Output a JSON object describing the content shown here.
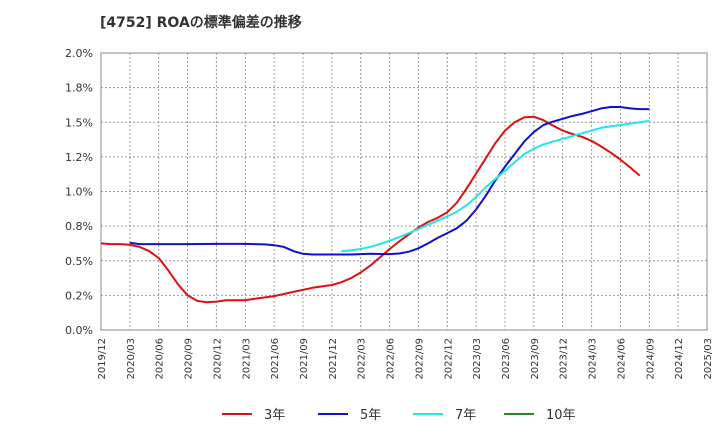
{
  "chart_data": {
    "type": "line",
    "title": "[4752]  ROAの標準偏差の推移",
    "xlabel": "",
    "ylabel": "",
    "ylim": [
      0,
      2.0
    ],
    "yticks": [
      "0.0%",
      "0.2%",
      "0.5%",
      "0.8%",
      "1.0%",
      "1.2%",
      "1.5%",
      "1.8%",
      "2.0%"
    ],
    "ytick_values": [
      0,
      0.25,
      0.5,
      0.75,
      1.0,
      1.25,
      1.5,
      1.75,
      2.0
    ],
    "xticks": [
      "2019/12",
      "2020/03",
      "2020/06",
      "2020/09",
      "2020/12",
      "2021/03",
      "2021/06",
      "2021/09",
      "2021/12",
      "2022/03",
      "2022/06",
      "2022/09",
      "2022/12",
      "2023/03",
      "2023/06",
      "2023/09",
      "2023/12",
      "2024/03",
      "2024/06",
      "2024/09",
      "2024/12",
      "2025/03"
    ],
    "grid": true,
    "legend_position": "bottom",
    "series": [
      {
        "name": "3年",
        "color": "#dd1111",
        "points": [
          [
            0,
            0.625
          ],
          [
            1,
            0.62
          ],
          [
            2,
            0.62
          ],
          [
            3,
            0.615
          ],
          [
            4,
            0.6
          ],
          [
            5,
            0.57
          ],
          [
            6,
            0.52
          ],
          [
            7,
            0.43
          ],
          [
            8,
            0.33
          ],
          [
            9,
            0.25
          ],
          [
            10,
            0.21
          ],
          [
            11,
            0.2
          ],
          [
            12,
            0.205
          ],
          [
            13,
            0.215
          ],
          [
            14,
            0.215
          ],
          [
            15,
            0.215
          ],
          [
            16,
            0.225
          ],
          [
            17,
            0.235
          ],
          [
            18,
            0.245
          ],
          [
            19,
            0.26
          ],
          [
            20,
            0.275
          ],
          [
            21,
            0.29
          ],
          [
            22,
            0.305
          ],
          [
            23,
            0.315
          ],
          [
            24,
            0.325
          ],
          [
            25,
            0.345
          ],
          [
            26,
            0.375
          ],
          [
            27,
            0.415
          ],
          [
            28,
            0.465
          ],
          [
            29,
            0.525
          ],
          [
            30,
            0.585
          ],
          [
            31,
            0.64
          ],
          [
            32,
            0.69
          ],
          [
            33,
            0.74
          ],
          [
            34,
            0.78
          ],
          [
            35,
            0.81
          ],
          [
            36,
            0.85
          ],
          [
            37,
            0.92
          ],
          [
            38,
            1.02
          ],
          [
            39,
            1.13
          ],
          [
            40,
            1.24
          ],
          [
            41,
            1.35
          ],
          [
            42,
            1.44
          ],
          [
            43,
            1.5
          ],
          [
            44,
            1.535
          ],
          [
            45,
            1.54
          ],
          [
            46,
            1.515
          ],
          [
            47,
            1.475
          ],
          [
            48,
            1.44
          ],
          [
            49,
            1.415
          ],
          [
            50,
            1.395
          ],
          [
            51,
            1.365
          ],
          [
            52,
            1.325
          ],
          [
            53,
            1.28
          ],
          [
            54,
            1.23
          ],
          [
            55,
            1.175
          ],
          [
            56,
            1.115
          ]
        ]
      },
      {
        "name": "5年",
        "color": "#1111cc",
        "points": [
          [
            3,
            0.63
          ],
          [
            4,
            0.62
          ],
          [
            6,
            0.62
          ],
          [
            9,
            0.62
          ],
          [
            12,
            0.622
          ],
          [
            15,
            0.622
          ],
          [
            17,
            0.618
          ],
          [
            18,
            0.612
          ],
          [
            19,
            0.6
          ],
          [
            20,
            0.57
          ],
          [
            21,
            0.55
          ],
          [
            22,
            0.545
          ],
          [
            24,
            0.545
          ],
          [
            26,
            0.545
          ],
          [
            28,
            0.55
          ],
          [
            30,
            0.548
          ],
          [
            31,
            0.552
          ],
          [
            32,
            0.565
          ],
          [
            33,
            0.59
          ],
          [
            34,
            0.625
          ],
          [
            35,
            0.665
          ],
          [
            36,
            0.7
          ],
          [
            37,
            0.735
          ],
          [
            38,
            0.79
          ],
          [
            39,
            0.87
          ],
          [
            40,
            0.97
          ],
          [
            41,
            1.08
          ],
          [
            42,
            1.18
          ],
          [
            43,
            1.27
          ],
          [
            44,
            1.36
          ],
          [
            45,
            1.43
          ],
          [
            46,
            1.48
          ],
          [
            47,
            1.505
          ],
          [
            48,
            1.525
          ],
          [
            49,
            1.545
          ],
          [
            50,
            1.56
          ],
          [
            51,
            1.58
          ],
          [
            52,
            1.6
          ],
          [
            53,
            1.61
          ],
          [
            54,
            1.61
          ],
          [
            55,
            1.6
          ],
          [
            56,
            1.595
          ],
          [
            57,
            1.595
          ]
        ]
      },
      {
        "name": "7年",
        "color": "#22e6ee",
        "points": [
          [
            25,
            0.57
          ],
          [
            26,
            0.575
          ],
          [
            27,
            0.585
          ],
          [
            28,
            0.6
          ],
          [
            29,
            0.62
          ],
          [
            30,
            0.645
          ],
          [
            31,
            0.67
          ],
          [
            32,
            0.7
          ],
          [
            33,
            0.73
          ],
          [
            34,
            0.76
          ],
          [
            35,
            0.79
          ],
          [
            36,
            0.82
          ],
          [
            37,
            0.855
          ],
          [
            38,
            0.9
          ],
          [
            39,
            0.96
          ],
          [
            40,
            1.03
          ],
          [
            41,
            1.09
          ],
          [
            42,
            1.15
          ],
          [
            43,
            1.21
          ],
          [
            44,
            1.27
          ],
          [
            45,
            1.31
          ],
          [
            46,
            1.34
          ],
          [
            47,
            1.36
          ],
          [
            48,
            1.38
          ],
          [
            49,
            1.4
          ],
          [
            50,
            1.42
          ],
          [
            51,
            1.44
          ],
          [
            52,
            1.46
          ],
          [
            53,
            1.47
          ],
          [
            54,
            1.48
          ],
          [
            55,
            1.49
          ],
          [
            56,
            1.5
          ],
          [
            57,
            1.51
          ]
        ]
      },
      {
        "name": "10年",
        "color": "#228b22",
        "points": []
      }
    ]
  }
}
